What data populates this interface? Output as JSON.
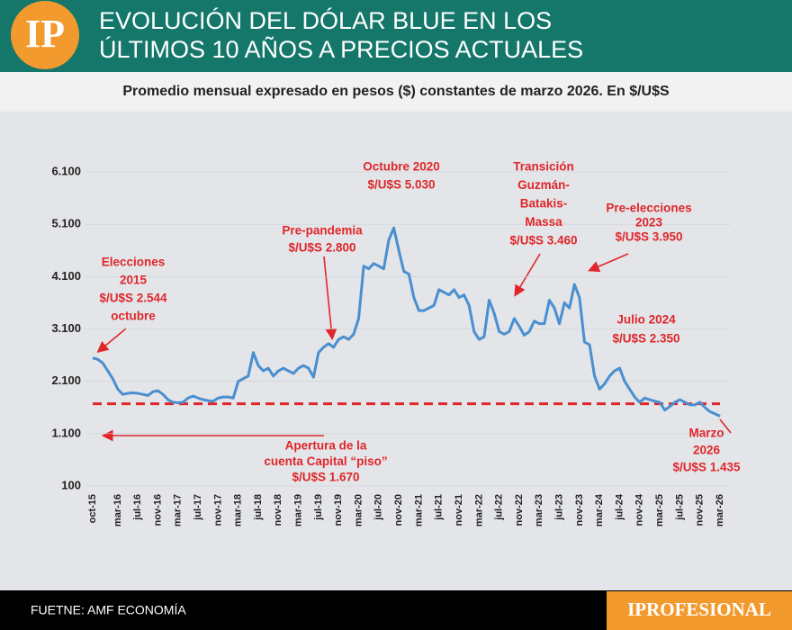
{
  "chart_data": {
    "type": "line",
    "logo": "IP",
    "title": [
      "EVOLUCIÓN DEL DÓLAR BLUE EN LOS",
      "ÚLTIMOS 10 AÑOS A PRECIOS ACTUALES"
    ],
    "subtitle": "Promedio mensual expresado en pesos ($) constantes de marzo 2026. En $/U$S",
    "source": "FUETNE: AMF ECONOMÍA",
    "brand": "IPROFESIONAL",
    "categories": [
      "oct-15",
      null,
      null,
      null,
      null,
      "mar-16",
      null,
      null,
      null,
      "jul-16",
      null,
      null,
      null,
      "nov-16",
      null,
      null,
      null,
      "mar-17",
      null,
      null,
      null,
      "jul-17",
      null,
      null,
      null,
      "nov-17",
      null,
      null,
      null,
      "mar-18",
      null,
      null,
      null,
      "jul-18",
      null,
      null,
      null,
      "nov-18",
      null,
      null,
      null,
      "mar-19",
      null,
      null,
      null,
      "jul-19",
      null,
      null,
      null,
      "nov-19",
      null,
      null,
      null,
      "mar-20",
      null,
      null,
      null,
      "jul-20",
      null,
      null,
      null,
      "nov-20",
      null,
      null,
      null,
      "mar-21",
      null,
      null,
      null,
      "jul-21",
      null,
      null,
      null,
      "nov-21",
      null,
      null,
      null,
      "mar-22",
      null,
      null,
      null,
      "jul-22",
      null,
      null,
      null,
      "nov-22",
      null,
      null,
      null,
      "mar-23",
      null,
      null,
      null,
      "jul-23",
      null,
      null,
      null,
      "nov-23",
      null,
      null,
      null,
      "mar-24",
      null,
      null,
      null,
      "jul-24",
      null,
      null,
      null,
      "nov-24",
      null,
      null,
      null,
      "mar-25",
      null,
      null,
      null,
      "jul-25",
      null,
      null,
      null,
      "nov-25",
      null,
      null,
      null,
      "mar-26"
    ],
    "series": [
      {
        "color": "#4a8fd0",
        "values": [
          2544,
          2520,
          2450,
          2300,
          2150,
          1950,
          1850,
          1870,
          1880,
          1870,
          1850,
          1830,
          1900,
          1920,
          1850,
          1750,
          1700,
          1690,
          1700,
          1780,
          1820,
          1780,
          1750,
          1730,
          1720,
          1780,
          1800,
          1800,
          1780,
          2100,
          2150,
          2200,
          2650,
          2400,
          2300,
          2350,
          2200,
          2300,
          2350,
          2300,
          2250,
          2350,
          2400,
          2350,
          2180,
          2650,
          2750,
          2820,
          2750,
          2900,
          2950,
          2900,
          3000,
          3300,
          4300,
          4250,
          4350,
          4300,
          4250,
          4800,
          5030,
          4600,
          4200,
          4150,
          3700,
          3450,
          3450,
          3500,
          3550,
          3850,
          3800,
          3750,
          3850,
          3700,
          3750,
          3550,
          3050,
          2900,
          2950,
          3650,
          3400,
          3050,
          3000,
          3050,
          3300,
          3150,
          2980,
          3050,
          3250,
          3200,
          3200,
          3650,
          3500,
          3200,
          3600,
          3500,
          3950,
          3700,
          2850,
          2800,
          2200,
          1950,
          2050,
          2200,
          2300,
          2350,
          2100,
          1950,
          1800,
          1700,
          1780,
          1750,
          1720,
          1700,
          1550,
          1620,
          1700,
          1750,
          1700,
          1650,
          1650,
          1700,
          1600,
          1520,
          1480,
          1435
        ]
      }
    ],
    "floor": 1670,
    "ylim": [
      100,
      6100
    ],
    "yticks": [
      100,
      {
        "value": 1100,
        "label": "1.100"
      },
      {
        "value": 2100,
        "label": "2.100"
      },
      {
        "value": 3100,
        "label": "3.100"
      },
      {
        "value": 4100,
        "label": "4.100"
      },
      {
        "value": 5100,
        "label": "5.100"
      },
      {
        "value": 6100,
        "label": "6.100"
      }
    ],
    "annotations": [
      {
        "lines": [
          "Elecciones",
          "2015",
          "$/U$S 2.544",
          "octubre"
        ]
      },
      {
        "lines": [
          "Pre-pandemia",
          "$/U$S 2.800"
        ]
      },
      {
        "lines": [
          "Octubre 2020",
          "$/U$S 5.030"
        ]
      },
      {
        "lines": [
          "Transición",
          "Guzmán-",
          "Batakis-",
          "Massa",
          "$/U$S 3.460"
        ]
      },
      {
        "lines": [
          "Pre-elecciones",
          "2023",
          "$/U$S 3.950"
        ]
      },
      {
        "lines": [
          "Julio 2024",
          "$/U$S 2.350"
        ]
      },
      {
        "lines": [
          "Apertura de la",
          "cuenta Capital “piso”",
          "$/U$S 1.670"
        ]
      },
      {
        "lines": [
          "Marzo",
          "2026",
          "$/U$S 1.435"
        ]
      }
    ]
  }
}
